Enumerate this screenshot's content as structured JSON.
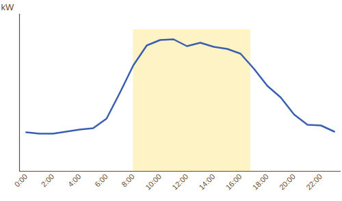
{
  "chart_data": {
    "type": "line",
    "y_label": "kW",
    "x": [
      0,
      1,
      2,
      3,
      4,
      5,
      6,
      7,
      8,
      9,
      10,
      11,
      12,
      13,
      14,
      15,
      16,
      17,
      18,
      19,
      20,
      21,
      22,
      23
    ],
    "values": [
      57,
      55,
      55,
      58,
      61,
      63,
      77,
      115,
      155,
      184,
      192,
      193,
      183,
      188,
      182,
      179,
      172,
      150,
      125,
      108,
      83,
      68,
      67,
      58
    ],
    "color": "#3a5fb0",
    "xlim": [
      -0.5,
      23.5
    ],
    "xticks": [
      {
        "value": 0,
        "label": "0:00"
      },
      {
        "value": 2,
        "label": "2:00"
      },
      {
        "value": 4,
        "label": "4:00"
      },
      {
        "value": 6,
        "label": "6:00"
      },
      {
        "value": 8,
        "label": "8:00"
      },
      {
        "value": 10,
        "label": "10:00"
      },
      {
        "value": 12,
        "label": "12:00"
      },
      {
        "value": 14,
        "label": "14:00"
      },
      {
        "value": 16,
        "label": "16:00"
      },
      {
        "value": 18,
        "label": "18:00"
      },
      {
        "value": 20,
        "label": "20:00"
      },
      {
        "value": 22,
        "label": "22:00"
      }
    ],
    "ylim": [
      0,
      230
    ],
    "tick_labels": "x",
    "highlight": {
      "x": [
        8,
        16.75
      ],
      "y": [
        0,
        207
      ],
      "color": "#fdf3c4"
    }
  }
}
